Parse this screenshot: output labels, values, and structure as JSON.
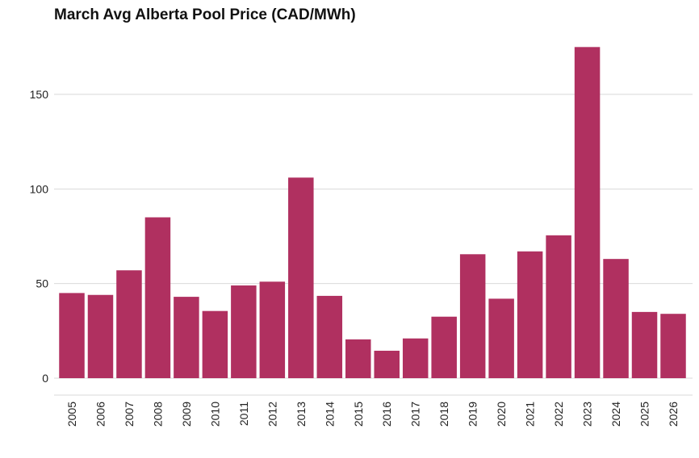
{
  "chart_data": {
    "type": "bar",
    "title": "March Avg Alberta Pool Price (CAD/MWh)",
    "xlabel": "",
    "ylabel": "",
    "categories": [
      "2005",
      "2006",
      "2007",
      "2008",
      "2009",
      "2010",
      "2011",
      "2012",
      "2013",
      "2014",
      "2015",
      "2016",
      "2017",
      "2018",
      "2019",
      "2020",
      "2021",
      "2022",
      "2023",
      "2024",
      "2025",
      "2026"
    ],
    "values": [
      45,
      44,
      57,
      85,
      43,
      35.5,
      49,
      51,
      106,
      43.5,
      20.5,
      14.5,
      21,
      32.5,
      65.5,
      42,
      67,
      75.5,
      175,
      63,
      35,
      34
    ],
    "ylim": [
      -8,
      183
    ],
    "yticks": [
      0,
      50,
      100,
      150
    ],
    "grid": true,
    "legend": "none",
    "bar_color": "#B03060"
  }
}
